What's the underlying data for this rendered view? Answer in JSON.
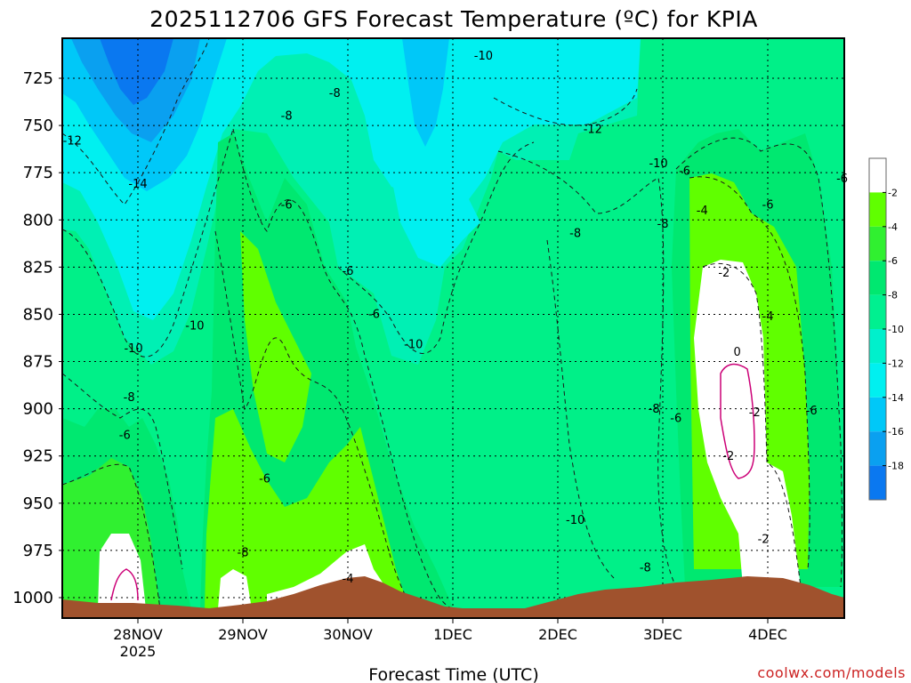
{
  "chart_data": {
    "type": "heatmap",
    "title": "2025112706 GFS Forecast Temperature (ºC) for KPIA",
    "xlabel": "Forecast Time (UTC)",
    "ylabel": "",
    "credit": "coolwx.com/models",
    "y_axis": {
      "ticks": [
        725,
        750,
        775,
        800,
        825,
        850,
        875,
        900,
        925,
        950,
        975,
        1000
      ],
      "ylim": [
        1012,
        706
      ],
      "reversed": true,
      "grid": true
    },
    "x_axis": {
      "ticks": [
        {
          "date": "2025-11-28",
          "label": "28NOV",
          "sublabel": "2025"
        },
        {
          "date": "2025-11-29",
          "label": "29NOV",
          "sublabel": ""
        },
        {
          "date": "2025-11-30",
          "label": "30NOV",
          "sublabel": ""
        },
        {
          "date": "2025-12-01",
          "label": "1DEC",
          "sublabel": ""
        },
        {
          "date": "2025-12-02",
          "label": "2DEC",
          "sublabel": ""
        },
        {
          "date": "2025-12-03",
          "label": "3DEC",
          "sublabel": ""
        },
        {
          "date": "2025-12-04",
          "label": "4DEC",
          "sublabel": ""
        }
      ]
    },
    "colorbar": {
      "levels": [
        -18,
        -16,
        -14,
        -12,
        -10,
        -8,
        -6,
        -4,
        -2
      ],
      "labels": [
        "-18",
        "-16",
        "-14",
        "-12",
        "-10",
        "-8",
        "-6",
        "-4",
        "-2"
      ],
      "colors": [
        "#0a78f0",
        "#0aa0f0",
        "#00c8f8",
        "#00f0f0",
        "#00f0cc",
        "#00f090",
        "#00e870",
        "#30f030",
        "#60ff00",
        "#ffffff"
      ]
    },
    "contour_labels": [
      {
        "text": "-12",
        "date": "2025-11-27T09:00",
        "p": 760
      },
      {
        "text": "-14",
        "date": "2025-11-28T00:00",
        "p": 783
      },
      {
        "text": "-10",
        "date": "2025-11-27T23:00",
        "p": 870
      },
      {
        "text": "-10",
        "date": "2025-11-28T13:00",
        "p": 858
      },
      {
        "text": "-8",
        "date": "2025-11-27T22:00",
        "p": 896
      },
      {
        "text": "-6",
        "date": "2025-11-27T21:00",
        "p": 916
      },
      {
        "text": "-8",
        "date": "2025-11-29T00:00",
        "p": 978
      },
      {
        "text": "-8",
        "date": "2025-11-29T10:00",
        "p": 747
      },
      {
        "text": "-8",
        "date": "2025-11-29T21:00",
        "p": 735
      },
      {
        "text": "-6",
        "date": "2025-11-29T10:00",
        "p": 794
      },
      {
        "text": "-6",
        "date": "2025-11-29T05:00",
        "p": 939
      },
      {
        "text": "-6",
        "date": "2025-11-30T00:00",
        "p": 829
      },
      {
        "text": "-6",
        "date": "2025-11-30T06:00",
        "p": 852
      },
      {
        "text": "-4",
        "date": "2025-11-30T00:00",
        "p": 992
      },
      {
        "text": "-10",
        "date": "2025-11-30T15:00",
        "p": 868
      },
      {
        "text": "-10",
        "date": "2025-12-01T07:00",
        "p": 715
      },
      {
        "text": "-12",
        "date": "2025-12-02T08:00",
        "p": 754
      },
      {
        "text": "-10",
        "date": "2025-12-02T23:00",
        "p": 772
      },
      {
        "text": "-8",
        "date": "2025-12-02T04:00",
        "p": 809
      },
      {
        "text": "-10",
        "date": "2025-12-02T04:00",
        "p": 961
      },
      {
        "text": "-8",
        "date": "2025-12-03T00:00",
        "p": 804
      },
      {
        "text": "-6",
        "date": "2025-12-03T05:00",
        "p": 776
      },
      {
        "text": "-4",
        "date": "2025-12-03T09:00",
        "p": 797
      },
      {
        "text": "-2",
        "date": "2025-12-03T14:00",
        "p": 830
      },
      {
        "text": "0",
        "date": "2025-12-03T17:00",
        "p": 872
      },
      {
        "text": "-4",
        "date": "2025-12-04T00:00",
        "p": 853
      },
      {
        "text": "-6",
        "date": "2025-12-04T00:00",
        "p": 794
      },
      {
        "text": "-6",
        "date": "2025-12-04T17:00",
        "p": 780
      },
      {
        "text": "-6",
        "date": "2025-12-04T10:00",
        "p": 903
      },
      {
        "text": "-2",
        "date": "2025-12-03T21:00",
        "p": 904
      },
      {
        "text": "-8",
        "date": "2025-12-02T22:00",
        "p": 902
      },
      {
        "text": "-6",
        "date": "2025-12-03T03:00",
        "p": 907
      },
      {
        "text": "-2",
        "date": "2025-12-03T15:00",
        "p": 927
      },
      {
        "text": "-2",
        "date": "2025-12-03T23:00",
        "p": 971
      },
      {
        "text": "-8",
        "date": "2025-12-02T20:00",
        "p": 986
      }
    ]
  }
}
